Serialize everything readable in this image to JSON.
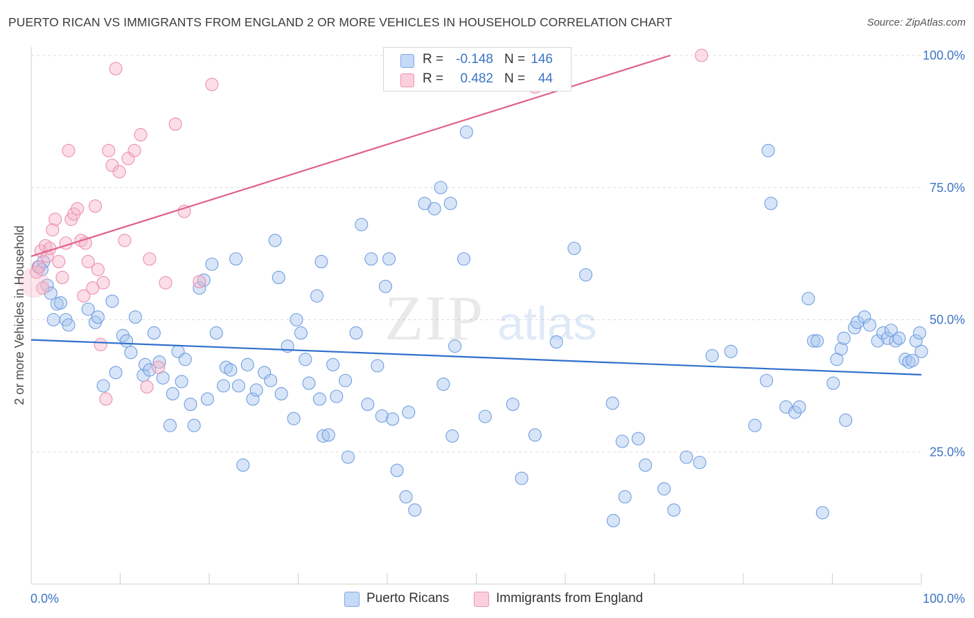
{
  "title": "PUERTO RICAN VS IMMIGRANTS FROM ENGLAND 2 OR MORE VEHICLES IN HOUSEHOLD CORRELATION CHART",
  "source": "Source: ZipAtlas.com",
  "watermark": {
    "zip": "ZIP",
    "atlas": "atlas"
  },
  "legend": {
    "rows": [
      {
        "r_label": "R =",
        "r_value": "-0.148",
        "n_label": "N =",
        "n_value": "146",
        "color": "#a8c6f0"
      },
      {
        "r_label": "R =",
        "r_value": "0.482",
        "n_label": "N =",
        "n_value": "44",
        "color": "#f7b6c9"
      }
    ]
  },
  "bottom_legend": [
    {
      "label": "Puerto Ricans",
      "color": "#a8c6f0"
    },
    {
      "label": "Immigrants from England",
      "color": "#f7b6c9"
    }
  ],
  "colors": {
    "blue_line": "#2f6fcc",
    "pink_line": "#e0608a",
    "blue_fill": "#a8c6f0",
    "pink_fill": "#f7b6c9",
    "tick_text": "#3d74c5"
  },
  "chart_data": {
    "type": "scatter",
    "title": "PUERTO RICAN VS IMMIGRANTS FROM ENGLAND 2 OR MORE VEHICLES IN HOUSEHOLD CORRELATION CHART",
    "xlabel": "",
    "ylabel": "2 or more Vehicles in Household",
    "xlim": [
      0,
      100
    ],
    "ylim": [
      0,
      103
    ],
    "x_tick_labels": [
      "0.0%",
      "100.0%"
    ],
    "y_ticks": [
      25,
      50,
      75,
      100
    ],
    "y_tick_labels": [
      "25.0%",
      "50.0%",
      "75.0%",
      "100.0%"
    ],
    "grid": true,
    "legend_position": "top-center",
    "series": [
      {
        "name": "Puerto Ricans",
        "color": "#a8c6f0",
        "trend": {
          "x": [
            0,
            100
          ],
          "y": [
            46.2,
            39.6
          ]
        },
        "points": [
          [
            0.8,
            60
          ],
          [
            1.2,
            59.5
          ],
          [
            1.4,
            61
          ],
          [
            1.8,
            56.5
          ],
          [
            2.2,
            55
          ],
          [
            2.5,
            50
          ],
          [
            2.9,
            53
          ],
          [
            3.3,
            53.2
          ],
          [
            3.9,
            50
          ],
          [
            4.2,
            49
          ],
          [
            6.4,
            52
          ],
          [
            7.2,
            49.5
          ],
          [
            7.5,
            50.5
          ],
          [
            8.1,
            37.5
          ],
          [
            9.1,
            53.5
          ],
          [
            9.5,
            40
          ],
          [
            10.3,
            47
          ],
          [
            10.7,
            46
          ],
          [
            11.2,
            43.8
          ],
          [
            11.7,
            50.5
          ],
          [
            12.6,
            39.5
          ],
          [
            12.8,
            41.5
          ],
          [
            13.3,
            40.5
          ],
          [
            13.8,
            47.5
          ],
          [
            14.4,
            42
          ],
          [
            14.8,
            39
          ],
          [
            15.6,
            30
          ],
          [
            15.9,
            36
          ],
          [
            16.5,
            44
          ],
          [
            16.9,
            38.3
          ],
          [
            17.3,
            42.5
          ],
          [
            17.9,
            34
          ],
          [
            18.3,
            30
          ],
          [
            18.9,
            56
          ],
          [
            19.4,
            57.5
          ],
          [
            19.8,
            35
          ],
          [
            20.3,
            60.5
          ],
          [
            20.8,
            47.5
          ],
          [
            21.6,
            37.5
          ],
          [
            21.9,
            41
          ],
          [
            22.4,
            40.5
          ],
          [
            23.0,
            61.5
          ],
          [
            23.3,
            37.5
          ],
          [
            23.8,
            22.5
          ],
          [
            24.3,
            41.5
          ],
          [
            24.9,
            35
          ],
          [
            25.3,
            36.7
          ],
          [
            26.2,
            40
          ],
          [
            26.9,
            38.5
          ],
          [
            27.4,
            65
          ],
          [
            27.8,
            58
          ],
          [
            28.1,
            36
          ],
          [
            28.8,
            45
          ],
          [
            29.5,
            31.3
          ],
          [
            29.8,
            50
          ],
          [
            30.3,
            47.5
          ],
          [
            30.8,
            42.5
          ],
          [
            31.2,
            38
          ],
          [
            32.1,
            54.5
          ],
          [
            32.4,
            35
          ],
          [
            32.6,
            61
          ],
          [
            32.8,
            28
          ],
          [
            33.4,
            28.2
          ],
          [
            33.9,
            41.5
          ],
          [
            34.3,
            35.5
          ],
          [
            35.3,
            38.5
          ],
          [
            35.6,
            24
          ],
          [
            36.5,
            47.5
          ],
          [
            37.1,
            68
          ],
          [
            37.8,
            34
          ],
          [
            38.2,
            61.5
          ],
          [
            38.9,
            41.3
          ],
          [
            39.4,
            31.8
          ],
          [
            39.8,
            56.3
          ],
          [
            40.2,
            61.5
          ],
          [
            40.6,
            31.2
          ],
          [
            41.1,
            21.5
          ],
          [
            42.1,
            16.5
          ],
          [
            42.4,
            32.5
          ],
          [
            43.1,
            14
          ],
          [
            44.2,
            72
          ],
          [
            45.3,
            71
          ],
          [
            46.0,
            75
          ],
          [
            46.3,
            37.8
          ],
          [
            47.1,
            72
          ],
          [
            47.3,
            28
          ],
          [
            47.6,
            45
          ],
          [
            48.6,
            61.5
          ],
          [
            48.9,
            85.5
          ],
          [
            51.0,
            31.7
          ],
          [
            54.1,
            34
          ],
          [
            55.1,
            20
          ],
          [
            56.6,
            28.2
          ],
          [
            59.0,
            45.8
          ],
          [
            61.0,
            63.5
          ],
          [
            62.3,
            58.5
          ],
          [
            65.3,
            34.2
          ],
          [
            65.4,
            12
          ],
          [
            66.4,
            27
          ],
          [
            66.7,
            16.5
          ],
          [
            68.2,
            27.5
          ],
          [
            69.0,
            22.5
          ],
          [
            71.1,
            18
          ],
          [
            72.2,
            14
          ],
          [
            73.6,
            24
          ],
          [
            75.1,
            23
          ],
          [
            76.5,
            43.2
          ],
          [
            78.6,
            44
          ],
          [
            81.3,
            30
          ],
          [
            82.6,
            38.5
          ],
          [
            82.8,
            82
          ],
          [
            83.1,
            72
          ],
          [
            84.8,
            33.5
          ],
          [
            85.8,
            32.5
          ],
          [
            86.3,
            33.5
          ],
          [
            87.3,
            54
          ],
          [
            87.9,
            46
          ],
          [
            88.3,
            46
          ],
          [
            88.9,
            13.5
          ],
          [
            90.1,
            38
          ],
          [
            90.5,
            42.5
          ],
          [
            91.0,
            44.5
          ],
          [
            91.3,
            46.5
          ],
          [
            91.5,
            31
          ],
          [
            92.5,
            48.5
          ],
          [
            92.8,
            49.5
          ],
          [
            93.6,
            50.5
          ],
          [
            94.2,
            49
          ],
          [
            95.1,
            46
          ],
          [
            95.7,
            47.5
          ],
          [
            96.2,
            46.5
          ],
          [
            96.6,
            48
          ],
          [
            97.1,
            46
          ],
          [
            97.5,
            46.5
          ],
          [
            98.2,
            42.5
          ],
          [
            98.6,
            42
          ],
          [
            99.0,
            42.3
          ],
          [
            99.4,
            46
          ],
          [
            99.8,
            47.5
          ],
          [
            100,
            44
          ]
        ]
      },
      {
        "name": "Immigrants from England",
        "color": "#f7b6c9",
        "trend": {
          "x": [
            0,
            71.8
          ],
          "y": [
            62,
            100
          ]
        },
        "points": [
          [
            0.6,
            59
          ],
          [
            0.9,
            60
          ],
          [
            1.1,
            63
          ],
          [
            1.3,
            56
          ],
          [
            1.6,
            64
          ],
          [
            1.8,
            62
          ],
          [
            2.1,
            63.5
          ],
          [
            2.4,
            67
          ],
          [
            2.7,
            69
          ],
          [
            3.1,
            61
          ],
          [
            3.5,
            58
          ],
          [
            3.9,
            64.5
          ],
          [
            4.2,
            82
          ],
          [
            4.5,
            69
          ],
          [
            4.8,
            70
          ],
          [
            5.2,
            71
          ],
          [
            5.6,
            65
          ],
          [
            5.9,
            54.5
          ],
          [
            6.1,
            64.5
          ],
          [
            6.4,
            61
          ],
          [
            6.9,
            56
          ],
          [
            7.2,
            71.5
          ],
          [
            7.5,
            59.5
          ],
          [
            7.8,
            45.3
          ],
          [
            8.1,
            57
          ],
          [
            8.4,
            35
          ],
          [
            8.7,
            82
          ],
          [
            9.1,
            79.2
          ],
          [
            9.5,
            97.5
          ],
          [
            9.9,
            78
          ],
          [
            10.5,
            65
          ],
          [
            10.9,
            80.5
          ],
          [
            11.6,
            82
          ],
          [
            12.3,
            85
          ],
          [
            13.0,
            37.3
          ],
          [
            13.3,
            61.5
          ],
          [
            14.3,
            41
          ],
          [
            15.1,
            57
          ],
          [
            16.2,
            87
          ],
          [
            17.2,
            70.5
          ],
          [
            18.9,
            57.2
          ],
          [
            20.3,
            94.5
          ],
          [
            56.6,
            94
          ],
          [
            75.3,
            100
          ]
        ]
      }
    ]
  }
}
